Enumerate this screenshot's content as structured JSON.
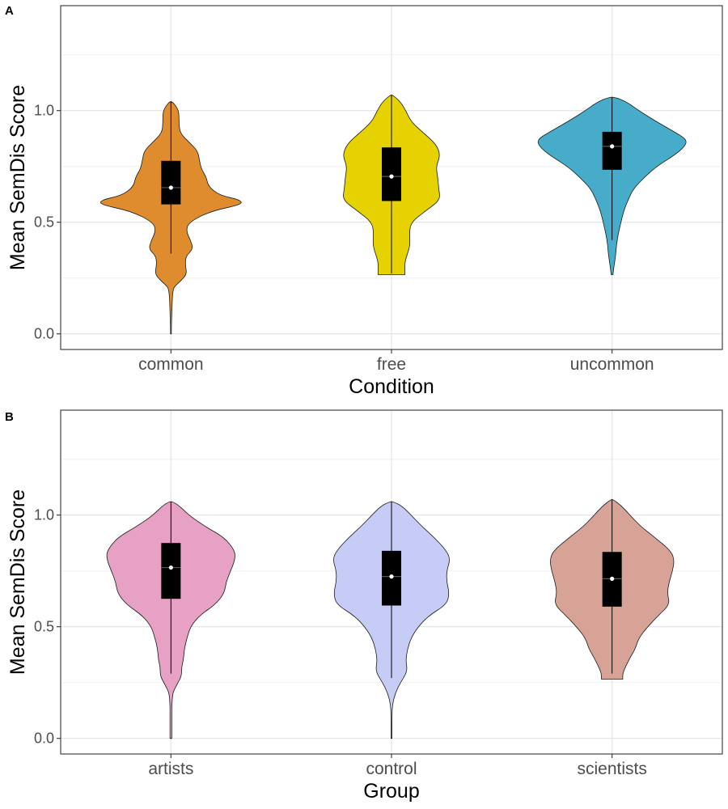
{
  "chart_data": [
    {
      "panel": "A",
      "type": "violin",
      "xlabel": "Condition",
      "ylabel": "Mean SemDis Score",
      "ylim": [
        -0.07,
        1.47
      ],
      "yticks": [
        0.0,
        0.5,
        1.0
      ],
      "ytick_labels": [
        "0.0",
        "0.5",
        "1.0"
      ],
      "grid": true,
      "categories": [
        "common",
        "free",
        "uncommon"
      ],
      "colors": [
        "#DE8C2E",
        "#E5D200",
        "#47ACC9"
      ],
      "boxes": [
        {
          "q1": 0.58,
          "median": 0.655,
          "q3": 0.775,
          "whisker_low": 0.36,
          "whisker_high": 1.04
        },
        {
          "q1": 0.595,
          "median": 0.705,
          "q3": 0.835,
          "whisker_low": 0.27,
          "whisker_high": 1.07
        },
        {
          "q1": 0.735,
          "median": 0.84,
          "q3": 0.905,
          "whisker_low": 0.42,
          "whisker_high": 1.06
        }
      ],
      "density_profiles": [
        [
          [
            0.0,
            0.005
          ],
          [
            0.03,
            0.005
          ],
          [
            0.1,
            0.01
          ],
          [
            0.2,
            0.02
          ],
          [
            0.22,
            0.06
          ],
          [
            0.24,
            0.12
          ],
          [
            0.27,
            0.18
          ],
          [
            0.31,
            0.16
          ],
          [
            0.35,
            0.17
          ],
          [
            0.38,
            0.25
          ],
          [
            0.42,
            0.22
          ],
          [
            0.46,
            0.17
          ],
          [
            0.5,
            0.2
          ],
          [
            0.55,
            0.45
          ],
          [
            0.58,
            0.8
          ],
          [
            0.6,
            0.78
          ],
          [
            0.62,
            0.55
          ],
          [
            0.66,
            0.42
          ],
          [
            0.7,
            0.4
          ],
          [
            0.74,
            0.34
          ],
          [
            0.78,
            0.32
          ],
          [
            0.82,
            0.3
          ],
          [
            0.86,
            0.2
          ],
          [
            0.9,
            0.1
          ],
          [
            0.95,
            0.09
          ],
          [
            1.0,
            0.09
          ],
          [
            1.04,
            0.02
          ]
        ],
        [
          [
            0.265,
            0.15
          ],
          [
            0.29,
            0.15
          ],
          [
            0.32,
            0.15
          ],
          [
            0.36,
            0.18
          ],
          [
            0.4,
            0.21
          ],
          [
            0.45,
            0.2
          ],
          [
            0.5,
            0.22
          ],
          [
            0.55,
            0.38
          ],
          [
            0.6,
            0.55
          ],
          [
            0.65,
            0.53
          ],
          [
            0.7,
            0.52
          ],
          [
            0.75,
            0.5
          ],
          [
            0.8,
            0.55
          ],
          [
            0.85,
            0.5
          ],
          [
            0.9,
            0.36
          ],
          [
            0.95,
            0.22
          ],
          [
            1.0,
            0.16
          ],
          [
            1.04,
            0.1
          ],
          [
            1.07,
            0.01
          ]
        ],
        [
          [
            0.265,
            0.01
          ],
          [
            0.3,
            0.02
          ],
          [
            0.35,
            0.04
          ],
          [
            0.4,
            0.05
          ],
          [
            0.45,
            0.07
          ],
          [
            0.5,
            0.1
          ],
          [
            0.55,
            0.13
          ],
          [
            0.6,
            0.18
          ],
          [
            0.65,
            0.24
          ],
          [
            0.7,
            0.36
          ],
          [
            0.75,
            0.5
          ],
          [
            0.8,
            0.7
          ],
          [
            0.84,
            0.82
          ],
          [
            0.87,
            0.84
          ],
          [
            0.9,
            0.72
          ],
          [
            0.95,
            0.5
          ],
          [
            1.0,
            0.3
          ],
          [
            1.04,
            0.16
          ],
          [
            1.06,
            0.03
          ]
        ]
      ]
    },
    {
      "panel": "B",
      "type": "violin",
      "xlabel": "Group",
      "ylabel": "Mean SemDis Score",
      "ylim": [
        -0.07,
        1.47
      ],
      "yticks": [
        0.0,
        0.5,
        1.0
      ],
      "ytick_labels": [
        "0.0",
        "0.5",
        "1.0"
      ],
      "grid": true,
      "categories": [
        "artists",
        "control",
        "scientists"
      ],
      "colors": [
        "#E6A1C4",
        "#C6CCF5",
        "#D7A397"
      ],
      "boxes": [
        {
          "q1": 0.625,
          "median": 0.765,
          "q3": 0.875,
          "whisker_low": 0.29,
          "whisker_high": 1.06
        },
        {
          "q1": 0.595,
          "median": 0.725,
          "q3": 0.84,
          "whisker_low": 0.27,
          "whisker_high": 1.06
        },
        {
          "q1": 0.59,
          "median": 0.715,
          "q3": 0.835,
          "whisker_low": 0.29,
          "whisker_high": 1.07
        }
      ],
      "density_profiles": [
        [
          [
            0.0,
            0.01
          ],
          [
            0.05,
            0.01
          ],
          [
            0.1,
            0.01
          ],
          [
            0.15,
            0.01
          ],
          [
            0.2,
            0.02
          ],
          [
            0.22,
            0.04
          ],
          [
            0.25,
            0.08
          ],
          [
            0.28,
            0.12
          ],
          [
            0.32,
            0.12
          ],
          [
            0.35,
            0.14
          ],
          [
            0.4,
            0.15
          ],
          [
            0.45,
            0.18
          ],
          [
            0.5,
            0.22
          ],
          [
            0.55,
            0.32
          ],
          [
            0.6,
            0.5
          ],
          [
            0.65,
            0.6
          ],
          [
            0.7,
            0.62
          ],
          [
            0.75,
            0.67
          ],
          [
            0.8,
            0.72
          ],
          [
            0.84,
            0.72
          ],
          [
            0.9,
            0.6
          ],
          [
            0.95,
            0.38
          ],
          [
            1.0,
            0.2
          ],
          [
            1.04,
            0.1
          ],
          [
            1.06,
            0.02
          ]
        ],
        [
          [
            0.0,
            0.005
          ],
          [
            0.1,
            0.005
          ],
          [
            0.15,
            0.01
          ],
          [
            0.2,
            0.04
          ],
          [
            0.25,
            0.1
          ],
          [
            0.3,
            0.18
          ],
          [
            0.35,
            0.16
          ],
          [
            0.4,
            0.18
          ],
          [
            0.45,
            0.22
          ],
          [
            0.5,
            0.3
          ],
          [
            0.55,
            0.42
          ],
          [
            0.6,
            0.62
          ],
          [
            0.65,
            0.65
          ],
          [
            0.7,
            0.62
          ],
          [
            0.75,
            0.62
          ],
          [
            0.8,
            0.66
          ],
          [
            0.84,
            0.62
          ],
          [
            0.9,
            0.48
          ],
          [
            0.95,
            0.34
          ],
          [
            1.0,
            0.22
          ],
          [
            1.04,
            0.12
          ],
          [
            1.06,
            0.02
          ]
        ],
        [
          [
            0.265,
            0.12
          ],
          [
            0.29,
            0.12
          ],
          [
            0.32,
            0.15
          ],
          [
            0.36,
            0.2
          ],
          [
            0.4,
            0.26
          ],
          [
            0.45,
            0.3
          ],
          [
            0.5,
            0.4
          ],
          [
            0.55,
            0.52
          ],
          [
            0.6,
            0.65
          ],
          [
            0.65,
            0.62
          ],
          [
            0.7,
            0.64
          ],
          [
            0.75,
            0.68
          ],
          [
            0.8,
            0.7
          ],
          [
            0.84,
            0.66
          ],
          [
            0.9,
            0.48
          ],
          [
            0.95,
            0.32
          ],
          [
            1.0,
            0.2
          ],
          [
            1.04,
            0.11
          ],
          [
            1.07,
            0.01
          ]
        ]
      ]
    }
  ]
}
